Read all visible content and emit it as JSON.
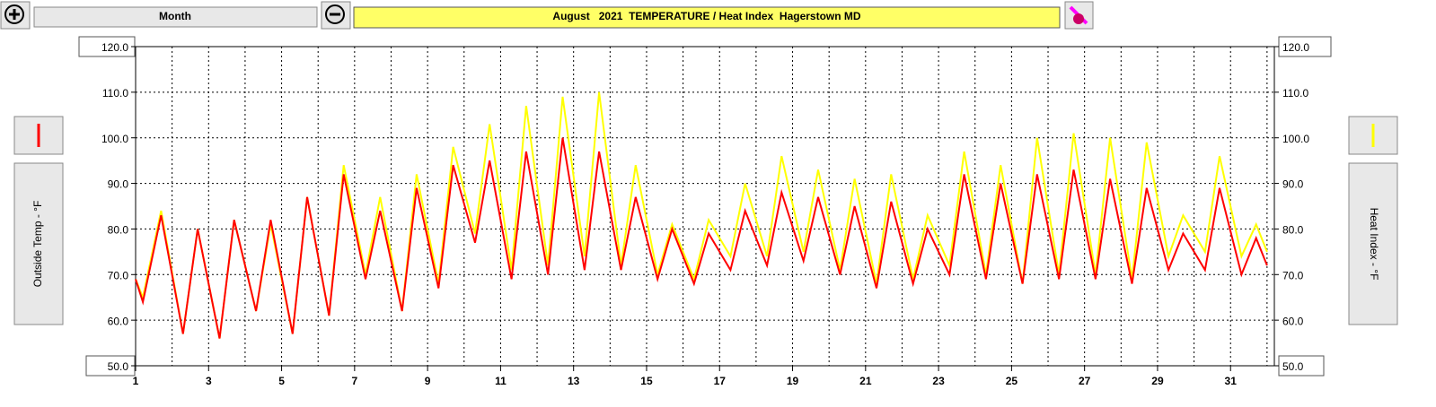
{
  "ui": {
    "range_button": "Month",
    "left_axis_label": "Outside Temp - °F",
    "right_axis_label": "Heat Index - °F"
  },
  "chart_data": {
    "type": "line",
    "title": "August   2021  TEMPERATURE / Heat Index  Hagerstown MD",
    "x": [
      1,
      1.2,
      1.7,
      2.3,
      2.7,
      3.3,
      3.7,
      4.3,
      4.7,
      5.3,
      5.7,
      6.3,
      6.7,
      7.3,
      7.7,
      8.3,
      8.7,
      9.3,
      9.7,
      10.3,
      10.7,
      11.3,
      11.7,
      12.3,
      12.7,
      13.3,
      13.7,
      14.3,
      14.7,
      15.3,
      15.7,
      16.3,
      16.7,
      17.3,
      17.7,
      18.3,
      18.7,
      19.3,
      19.7,
      20.3,
      20.7,
      21.3,
      21.7,
      22.3,
      22.7,
      23.3,
      23.7,
      24.3,
      24.7,
      25.3,
      25.7,
      26.3,
      26.7,
      27.3,
      27.7,
      28.3,
      28.7,
      29.3,
      29.7,
      30.3,
      30.7,
      31.3,
      31.7,
      32
    ],
    "series": [
      {
        "name": "Outside Temp",
        "color": "#ff0000",
        "values": [
          69,
          64,
          83,
          57,
          80,
          56,
          82,
          62,
          82,
          57,
          87,
          61,
          92,
          69,
          84,
          62,
          89,
          67,
          94,
          77,
          95,
          69,
          97,
          70,
          100,
          71,
          97,
          71,
          87,
          69,
          80,
          68,
          79,
          71,
          84,
          72,
          88,
          73,
          87,
          70,
          85,
          67,
          86,
          68,
          80,
          70,
          92,
          69,
          90,
          68,
          92,
          69,
          93,
          69,
          91,
          68,
          89,
          71,
          79,
          71,
          89,
          70,
          78,
          72
        ]
      },
      {
        "name": "Heat Index",
        "color": "#ffff00",
        "axis": "y2",
        "values": [
          69,
          65,
          84,
          57,
          80,
          56,
          82,
          62,
          81,
          57,
          87,
          61,
          94,
          70,
          87,
          62,
          92,
          68,
          98,
          79,
          103,
          71,
          107,
          72,
          109,
          74,
          110,
          72,
          94,
          70,
          81,
          69,
          82,
          74,
          90,
          74,
          96,
          75,
          93,
          71,
          91,
          68,
          92,
          69,
          83,
          72,
          97,
          70,
          94,
          68,
          100,
          70,
          101,
          70,
          100,
          69,
          99,
          74,
          83,
          75,
          96,
          74,
          81,
          75
        ]
      }
    ],
    "xlim": [
      1,
      32.2
    ],
    "xticks": [
      1,
      3,
      5,
      7,
      9,
      11,
      13,
      15,
      17,
      19,
      21,
      23,
      25,
      27,
      29,
      31
    ],
    "ylim": [
      50,
      120
    ],
    "yticks": [
      {
        "value": 50,
        "label": "50.0"
      },
      {
        "value": 60,
        "label": "60.0"
      },
      {
        "value": 70,
        "label": "70.0"
      },
      {
        "value": 80,
        "label": "80.0"
      },
      {
        "value": 90,
        "label": "90.0"
      },
      {
        "value": 100,
        "label": "100.0"
      },
      {
        "value": 110,
        "label": "110.0"
      },
      {
        "value": 120,
        "label": "120.0"
      }
    ],
    "y2lim": [
      50,
      120
    ],
    "y2ticks": [
      {
        "value": 50,
        "label": "50.0"
      },
      {
        "value": 60,
        "label": "60.0"
      },
      {
        "value": 70,
        "label": "70.0"
      },
      {
        "value": 80,
        "label": "80.0"
      },
      {
        "value": 90,
        "label": "90.0"
      },
      {
        "value": 100,
        "label": "100.0"
      },
      {
        "value": 110,
        "label": "110.0"
      },
      {
        "value": 120,
        "label": "120.0"
      }
    ],
    "grid": true
  }
}
